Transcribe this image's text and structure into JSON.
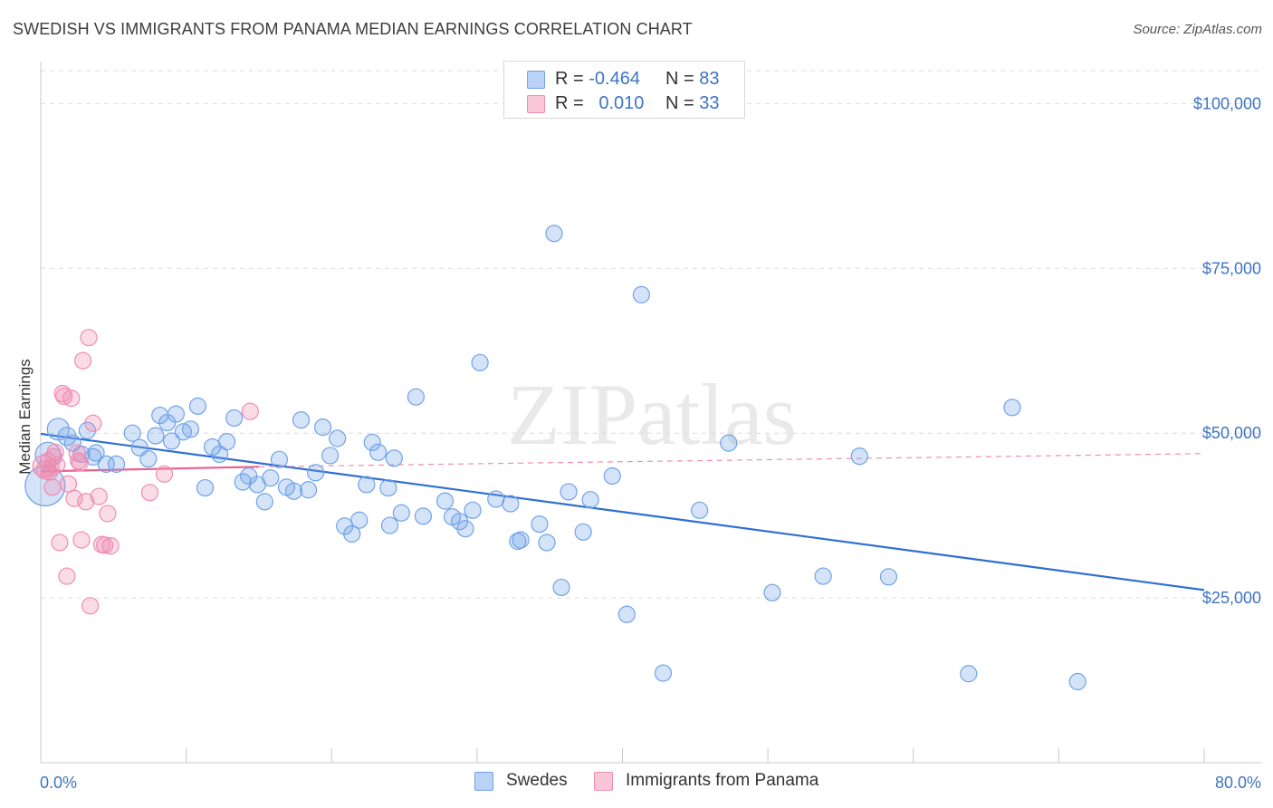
{
  "title": "SWEDISH VS IMMIGRANTS FROM PANAMA MEDIAN EARNINGS CORRELATION CHART",
  "source": "Source: ZipAtlas.com",
  "watermark": "ZIPatlas",
  "legend": {
    "rows": [
      {
        "r_label": "R =",
        "r_value": "-0.464",
        "n_label": "N =",
        "n_value": "83",
        "color": "#6fa3e8"
      },
      {
        "r_label": "R =",
        "r_value": "0.010",
        "n_label": "N =",
        "n_value": "33",
        "color": "#f08cb0"
      }
    ]
  },
  "bottom_legend": {
    "swedes": "Swedes",
    "panama": "Immigrants from Panama"
  },
  "chart_data": {
    "type": "scatter",
    "title": "SWEDISH VS IMMIGRANTS FROM PANAMA MEDIAN EARNINGS CORRELATION CHART",
    "xlabel": "",
    "ylabel": "Median Earnings",
    "xlim": [
      0,
      80
    ],
    "ylim": [
      0,
      105000
    ],
    "x_tick_labels": [
      "0.0%",
      "80.0%"
    ],
    "y_ticks": [
      25000,
      50000,
      75000,
      100000
    ],
    "y_tick_labels": [
      "$25,000",
      "$50,000",
      "$75,000",
      "$100,000"
    ],
    "series": [
      {
        "name": "Swedes",
        "color": "#6fa3e8",
        "trend": {
          "x": [
            0,
            80
          ],
          "y": [
            49900,
            26200
          ],
          "style": "solid"
        },
        "points": [
          [
            0.3,
            42000,
            22
          ],
          [
            0.5,
            46700,
            14
          ],
          [
            1.2,
            50600,
            12
          ],
          [
            1.8,
            49500,
            10
          ],
          [
            2.2,
            48500,
            9
          ],
          [
            2.8,
            46800,
            9
          ],
          [
            3.2,
            50400,
            9
          ],
          [
            3.8,
            47000,
            9
          ],
          [
            4.5,
            45300,
            9
          ],
          [
            5.2,
            45300,
            9
          ],
          [
            6.3,
            50000,
            9
          ],
          [
            6.8,
            47800,
            9
          ],
          [
            7.4,
            46100,
            9
          ],
          [
            7.9,
            49600,
            9
          ],
          [
            8.2,
            52700,
            9
          ],
          [
            8.7,
            51600,
            9
          ],
          [
            9.3,
            52900,
            9
          ],
          [
            9.8,
            50200,
            9
          ],
          [
            10.3,
            50600,
            9
          ],
          [
            10.8,
            54100,
            9
          ],
          [
            11.3,
            41700,
            9
          ],
          [
            11.8,
            47900,
            9
          ],
          [
            12.3,
            46800,
            9
          ],
          [
            12.8,
            48700,
            9
          ],
          [
            13.3,
            52300,
            9
          ],
          [
            13.9,
            42600,
            9
          ],
          [
            14.3,
            43500,
            9
          ],
          [
            14.9,
            42200,
            9
          ],
          [
            15.4,
            39600,
            9
          ],
          [
            15.8,
            43200,
            9
          ],
          [
            16.4,
            46000,
            9
          ],
          [
            16.9,
            41800,
            9
          ],
          [
            17.4,
            41200,
            9
          ],
          [
            17.9,
            52000,
            9
          ],
          [
            18.4,
            41400,
            9
          ],
          [
            18.9,
            44000,
            9
          ],
          [
            19.4,
            50900,
            9
          ],
          [
            19.9,
            46600,
            9
          ],
          [
            20.4,
            49200,
            9
          ],
          [
            20.9,
            35900,
            9
          ],
          [
            21.4,
            34700,
            9
          ],
          [
            21.9,
            36800,
            9
          ],
          [
            22.4,
            42200,
            9
          ],
          [
            22.8,
            48600,
            9
          ],
          [
            23.2,
            47100,
            9
          ],
          [
            23.9,
            41700,
            9
          ],
          [
            24.3,
            46200,
            9
          ],
          [
            24.8,
            37900,
            9
          ],
          [
            25.8,
            55500,
            9
          ],
          [
            26.3,
            37400,
            9
          ],
          [
            27.8,
            39700,
            9
          ],
          [
            28.3,
            37300,
            9
          ],
          [
            28.8,
            36600,
            9
          ],
          [
            29.2,
            35500,
            9
          ],
          [
            29.7,
            38300,
            9
          ],
          [
            30.2,
            60700,
            9
          ],
          [
            31.3,
            40000,
            9
          ],
          [
            32.3,
            39300,
            9
          ],
          [
            32.8,
            33600,
            9
          ],
          [
            34.3,
            36200,
            9
          ],
          [
            34.8,
            33400,
            9
          ],
          [
            35.3,
            80300,
            9
          ],
          [
            35.8,
            26600,
            9
          ],
          [
            36.3,
            41100,
            9
          ],
          [
            37.3,
            35000,
            9
          ],
          [
            37.8,
            39900,
            9
          ],
          [
            39.3,
            43500,
            9
          ],
          [
            40.3,
            22500,
            9
          ],
          [
            41.3,
            71000,
            9
          ],
          [
            42.8,
            13600,
            9
          ],
          [
            45.3,
            38300,
            9
          ],
          [
            47.3,
            48500,
            9
          ],
          [
            50.3,
            25800,
            9
          ],
          [
            53.8,
            28300,
            9
          ],
          [
            56.3,
            46500,
            9
          ],
          [
            58.3,
            28200,
            9
          ],
          [
            63.8,
            13500,
            9
          ],
          [
            66.8,
            53900,
            9
          ],
          [
            71.3,
            12300,
            9
          ],
          [
            33.0,
            33800,
            9
          ],
          [
            24.0,
            36000,
            9
          ],
          [
            9.0,
            48800,
            9
          ],
          [
            3.6,
            46400,
            9
          ]
        ]
      },
      {
        "name": "Immigrants from Panama",
        "color": "#f08cb0",
        "trend": {
          "x": [
            0,
            15
          ],
          "y": [
            44200,
            44900
          ],
          "style": "solid",
          "dashed_extension_to": [
            80,
            46900
          ]
        },
        "points": [
          [
            0.2,
            45000,
            12
          ],
          [
            0.3,
            44400,
            10
          ],
          [
            0.5,
            45800,
            9
          ],
          [
            0.6,
            44100,
            9
          ],
          [
            0.8,
            41800,
            9
          ],
          [
            0.9,
            46400,
            9
          ],
          [
            1.0,
            47100,
            9
          ],
          [
            1.3,
            33400,
            9
          ],
          [
            1.5,
            56000,
            9
          ],
          [
            1.6,
            55600,
            9
          ],
          [
            1.8,
            28300,
            9
          ],
          [
            1.9,
            42300,
            9
          ],
          [
            2.1,
            55300,
            9
          ],
          [
            2.3,
            40100,
            9
          ],
          [
            2.5,
            47000,
            9
          ],
          [
            2.6,
            45800,
            9
          ],
          [
            2.8,
            33800,
            9
          ],
          [
            2.9,
            61000,
            9
          ],
          [
            3.1,
            39600,
            9
          ],
          [
            3.3,
            64500,
            9
          ],
          [
            3.4,
            23800,
            9
          ],
          [
            3.6,
            51500,
            9
          ],
          [
            4.0,
            40400,
            9
          ],
          [
            4.4,
            33000,
            9
          ],
          [
            4.6,
            37800,
            9
          ],
          [
            4.8,
            32900,
            9
          ],
          [
            7.5,
            41000,
            9
          ],
          [
            8.5,
            43800,
            9
          ],
          [
            14.4,
            53300,
            9
          ],
          [
            1.1,
            45200,
            9
          ],
          [
            2.7,
            45500,
            9
          ],
          [
            0.7,
            44700,
            9
          ],
          [
            4.2,
            33100,
            9
          ]
        ]
      }
    ]
  }
}
